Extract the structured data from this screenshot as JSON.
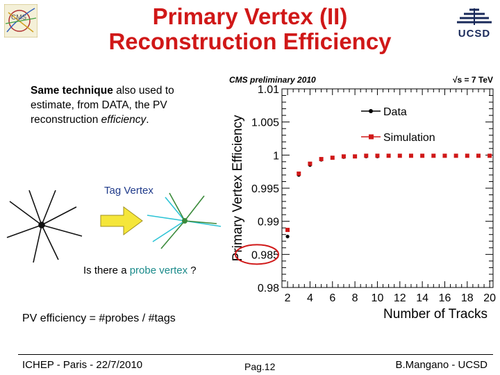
{
  "slide": {
    "title_line1": "Primary Vertex (II)",
    "title_line2": "Reconstruction Efficiency",
    "logo_right_text": "UCSD",
    "intro": {
      "bold1": "Same technique",
      "text1": " also used to estimate, from DATA, the PV reconstruction ",
      "italic1": "efficiency",
      "text2": "."
    },
    "tag_label": "Tag Vertex",
    "probe_question_pre": "Is there a ",
    "probe_question_highlight": "probe vertex",
    "probe_question_post": " ?",
    "efficiency_formula": "PV efficiency = #probes / #tags",
    "footer": {
      "left": "ICHEP - Paris - 22/7/2010",
      "center": "Pag.12",
      "right": "B.Mangano - UCSD"
    }
  },
  "colors": {
    "title": "#d01818",
    "data_series": "#000000",
    "simulation_series": "#d01818",
    "highlight_circle": "#d01818",
    "probe_text": "#1a8a8a",
    "arrow_fill": "#f5e63a"
  },
  "chart_data": {
    "type": "scatter",
    "header_left": "CMS preliminary 2010",
    "header_right": "√s = 7 TeV",
    "xlabel": "Number of Tracks",
    "ylabel": "Primary Vertex Efficiency",
    "xlim": [
      1.5,
      20.3
    ],
    "ylim": [
      0.98,
      1.01
    ],
    "x_ticks": [
      2,
      4,
      6,
      8,
      10,
      12,
      14,
      16,
      18,
      20
    ],
    "y_ticks": [
      0.98,
      0.985,
      0.99,
      0.995,
      1,
      1.005,
      1.01
    ],
    "y_tick_labels": [
      "0.98",
      "0.985",
      "0.99",
      "0.995",
      "1",
      "1.005",
      "1.01"
    ],
    "legend_position": "top-right",
    "series": [
      {
        "name": "Data",
        "marker": "circle",
        "x": [
          2,
          3,
          4,
          5,
          6,
          7,
          8,
          9,
          10,
          11,
          12,
          13,
          14,
          15,
          16,
          17,
          18,
          19,
          20
        ],
        "y": [
          0.9877,
          0.997,
          0.9985,
          0.9993,
          0.9996,
          0.9997,
          0.9998,
          0.9998,
          0.9998,
          0.9999,
          0.9999,
          0.9999,
          0.9999,
          0.9999,
          0.9999,
          0.9999,
          0.9999,
          0.9999,
          0.9999
        ]
      },
      {
        "name": "Simulation",
        "marker": "square",
        "x": [
          2,
          3,
          4,
          5,
          6,
          7,
          8,
          9,
          10,
          11,
          12,
          13,
          14,
          15,
          16,
          17,
          18,
          19,
          20
        ],
        "y": [
          0.9887,
          0.9972,
          0.9987,
          0.9994,
          0.9996,
          0.9998,
          0.9998,
          0.9999,
          0.9999,
          0.9999,
          0.9999,
          0.9999,
          0.9999,
          0.9999,
          0.9999,
          0.9999,
          0.9999,
          0.9999,
          0.9999
        ]
      }
    ]
  }
}
